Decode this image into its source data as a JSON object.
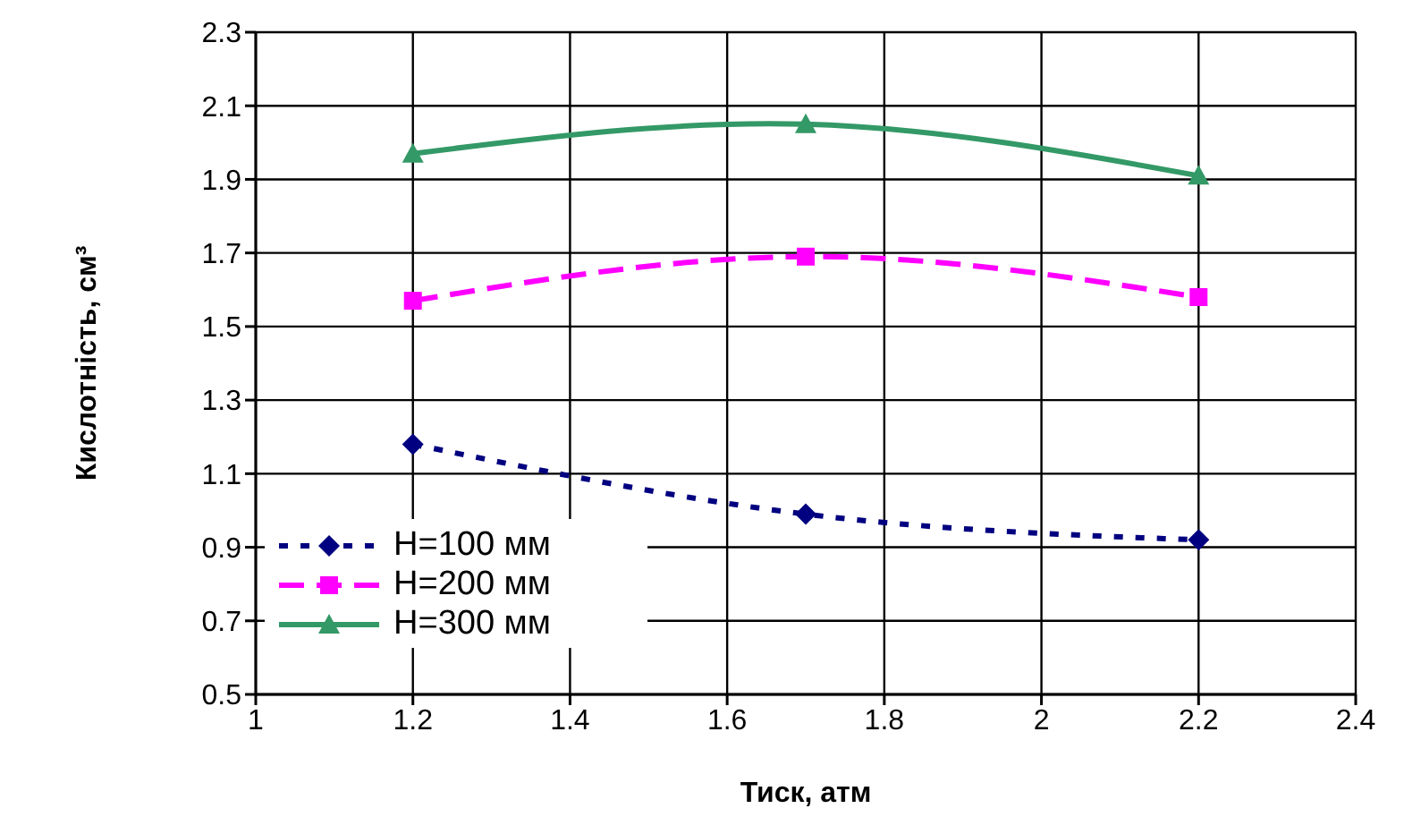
{
  "chart_data": {
    "type": "line",
    "xlabel": "Тиск, атм",
    "ylabel": "Кислотність, см³",
    "x": [
      1.2,
      1.7,
      2.2
    ],
    "series": [
      {
        "name": "H=100 мм",
        "color": "#000080",
        "values": [
          1.18,
          0.99,
          0.92
        ],
        "marker": "diamond",
        "line_style": "dotted"
      },
      {
        "name": "H=200 мм",
        "color": "#ff00ff",
        "values": [
          1.57,
          1.69,
          1.58
        ],
        "marker": "square",
        "line_style": "dashed"
      },
      {
        "name": "H=300 мм",
        "color": "#339966",
        "values": [
          1.97,
          2.05,
          1.91
        ],
        "marker": "triangle",
        "line_style": "solid"
      }
    ],
    "xlim": [
      1,
      2.4
    ],
    "xticks": [
      1,
      1.2,
      1.4,
      1.6,
      1.8,
      2,
      2.2,
      2.4
    ],
    "ylim": [
      0.5,
      2.3
    ],
    "yticks": [
      0.5,
      0.7,
      0.9,
      1.1,
      1.3,
      1.5,
      1.7,
      1.9,
      2.1,
      2.3
    ],
    "grid": true,
    "legend": "bottom left"
  }
}
